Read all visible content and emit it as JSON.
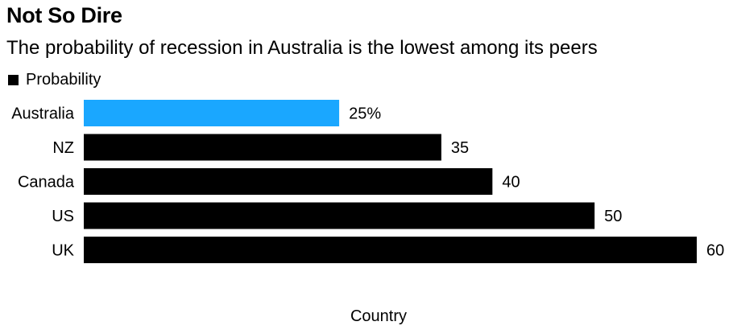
{
  "title": "Not So Dire",
  "subtitle": "The probability of recession in Australia is the lowest among its peers",
  "chart_data": {
    "type": "bar",
    "orientation": "horizontal",
    "categories": [
      "Australia",
      "NZ",
      "Canada",
      "US",
      "UK"
    ],
    "series": [
      {
        "name": "Probability",
        "values": [
          25,
          35,
          40,
          50,
          60
        ]
      }
    ],
    "value_labels": [
      "25%",
      "35",
      "40",
      "50",
      "60"
    ],
    "xlabel": "Country",
    "ylabel": "",
    "xlim": [
      0,
      60
    ],
    "grid": false,
    "legend_position": "top-left",
    "colors": {
      "default": "#000000",
      "highlight": "#1aa7ff"
    },
    "highlight_category": "Australia"
  }
}
